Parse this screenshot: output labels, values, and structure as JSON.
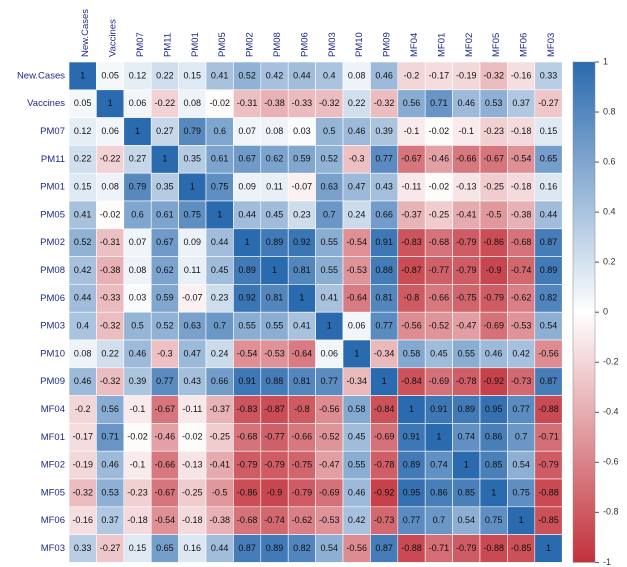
{
  "chart_data": {
    "type": "heatmap",
    "x_categories": [
      "New.Cases",
      "Vaccines",
      "PM07",
      "PM11",
      "PM01",
      "PM05",
      "PM02",
      "PM08",
      "PM06",
      "PM03",
      "PM10",
      "PM09",
      "MF04",
      "MF01",
      "MF02",
      "MF05",
      "MF06",
      "MF03"
    ],
    "y_categories": [
      "New.Cases",
      "Vaccines",
      "PM07",
      "PM11",
      "PM01",
      "PM05",
      "PM02",
      "PM08",
      "PM06",
      "PM03",
      "PM10",
      "PM09",
      "MF04",
      "MF01",
      "MF02",
      "MF05",
      "MF06",
      "MF03"
    ],
    "values": [
      [
        1,
        0.05,
        0.12,
        0.22,
        0.15,
        0.41,
        0.52,
        0.42,
        0.44,
        0.4,
        0.08,
        0.46,
        -0.2,
        -0.17,
        -0.19,
        -0.32,
        -0.16,
        0.33
      ],
      [
        0.05,
        1,
        0.06,
        -0.22,
        0.08,
        -0.02,
        -0.31,
        -0.38,
        -0.33,
        -0.32,
        0.22,
        -0.32,
        0.56,
        0.71,
        0.46,
        0.53,
        0.37,
        -0.27
      ],
      [
        0.12,
        0.06,
        1,
        0.27,
        0.79,
        0.6,
        0.07,
        0.08,
        0.03,
        0.5,
        0.46,
        0.39,
        -0.1,
        -0.02,
        -0.1,
        -0.23,
        -0.18,
        0.15
      ],
      [
        0.22,
        -0.22,
        0.27,
        1,
        0.35,
        0.61,
        0.67,
        0.62,
        0.59,
        0.52,
        -0.3,
        0.77,
        -0.67,
        -0.46,
        -0.66,
        -0.67,
        -0.54,
        0.65
      ],
      [
        0.15,
        0.08,
        0.79,
        0.35,
        1,
        0.75,
        0.09,
        0.11,
        -0.07,
        0.63,
        0.47,
        0.43,
        -0.11,
        -0.02,
        -0.13,
        -0.25,
        -0.18,
        0.16
      ],
      [
        0.41,
        -0.02,
        0.6,
        0.61,
        0.75,
        1,
        0.44,
        0.45,
        0.23,
        0.7,
        0.24,
        0.66,
        -0.37,
        -0.25,
        -0.41,
        -0.5,
        -0.38,
        0.44
      ],
      [
        0.52,
        -0.31,
        0.07,
        0.67,
        0.09,
        0.44,
        1,
        0.89,
        0.92,
        0.55,
        -0.54,
        0.91,
        -0.83,
        -0.68,
        -0.79,
        -0.86,
        -0.68,
        0.87
      ],
      [
        0.42,
        -0.38,
        0.08,
        0.62,
        0.11,
        0.45,
        0.89,
        1,
        0.81,
        0.55,
        -0.53,
        0.88,
        -0.87,
        -0.77,
        -0.79,
        -0.9,
        -0.74,
        0.89
      ],
      [
        0.44,
        -0.33,
        0.03,
        0.59,
        -0.07,
        0.23,
        0.92,
        0.81,
        1,
        0.41,
        -0.64,
        0.81,
        -0.8,
        -0.66,
        -0.75,
        -0.79,
        -0.62,
        0.82
      ],
      [
        0.4,
        -0.32,
        0.5,
        0.52,
        0.63,
        0.7,
        0.55,
        0.55,
        0.41,
        1,
        0.06,
        0.77,
        -0.56,
        -0.52,
        -0.47,
        -0.69,
        -0.53,
        0.54
      ],
      [
        0.08,
        0.22,
        0.46,
        -0.3,
        0.47,
        0.24,
        -0.54,
        -0.53,
        -0.64,
        0.06,
        1,
        -0.34,
        0.58,
        0.45,
        0.55,
        0.46,
        0.42,
        -0.56
      ],
      [
        0.46,
        -0.32,
        0.39,
        0.77,
        0.43,
        0.66,
        0.91,
        0.88,
        0.81,
        0.77,
        -0.34,
        1,
        -0.84,
        -0.69,
        -0.78,
        -0.92,
        -0.73,
        0.87
      ],
      [
        -0.2,
        0.56,
        -0.1,
        -0.67,
        -0.11,
        -0.37,
        -0.83,
        -0.87,
        -0.8,
        -0.56,
        0.58,
        -0.84,
        1,
        0.91,
        0.89,
        0.95,
        0.77,
        -0.88
      ],
      [
        -0.17,
        0.71,
        -0.02,
        -0.46,
        -0.02,
        -0.25,
        -0.68,
        -0.77,
        -0.66,
        -0.52,
        0.45,
        -0.69,
        0.91,
        1,
        0.74,
        0.86,
        0.7,
        -0.71
      ],
      [
        -0.19,
        0.46,
        -0.1,
        -0.66,
        -0.13,
        -0.41,
        -0.79,
        -0.79,
        -0.75,
        -0.47,
        0.55,
        -0.78,
        0.89,
        0.74,
        1,
        0.85,
        0.54,
        -0.79
      ],
      [
        -0.32,
        0.53,
        -0.23,
        -0.67,
        -0.25,
        -0.5,
        -0.86,
        -0.9,
        -0.79,
        -0.69,
        0.46,
        -0.92,
        0.95,
        0.86,
        0.85,
        1,
        0.75,
        -0.88
      ],
      [
        -0.16,
        0.37,
        -0.18,
        -0.54,
        -0.18,
        -0.38,
        -0.68,
        -0.74,
        -0.62,
        -0.53,
        0.42,
        -0.73,
        0.77,
        0.7,
        0.54,
        0.75,
        1,
        -0.85
      ],
      [
        0.33,
        -0.27,
        0.15,
        0.65,
        0.16,
        0.44,
        0.87,
        0.89,
        0.82,
        0.54,
        -0.56,
        0.87,
        -0.88,
        -0.71,
        -0.79,
        -0.88,
        -0.85,
        1
      ]
    ],
    "colormap": [
      "#c2313b",
      "#ffffff",
      "#2a6aae"
    ],
    "zlim": [
      -1,
      1
    ],
    "zticks": [
      1,
      0.8,
      0.6,
      0.4,
      0.2,
      0,
      -0.2,
      -0.4,
      -0.6,
      -0.8,
      -1
    ]
  }
}
